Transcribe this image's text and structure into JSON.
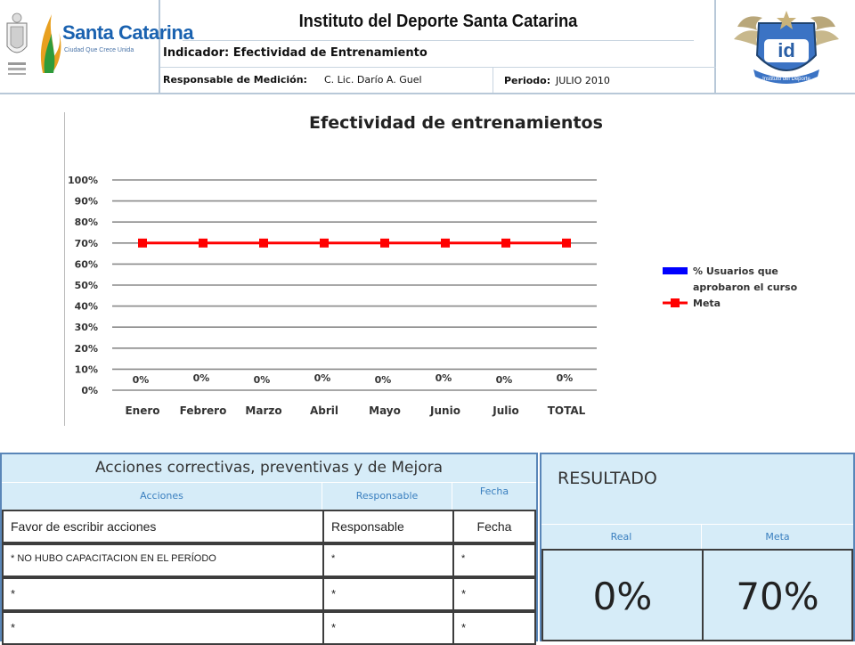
{
  "header": {
    "brand_title": "Santa Catarina",
    "brand_subtitle": "Ciudad Que Crece Unida",
    "institute_title": "Instituto del Deporte Santa Catarina",
    "indicator": "Indicador: Efectividad de Entrenamiento",
    "responsible_label": "Responsable de Medición:",
    "responsible_value": "C. Lic. Darío A. Guel",
    "period_label": "Periodo:",
    "period_value": "JULIO 2010",
    "right_logo_text": "id",
    "right_logo_caption": "Instituto del Deporte",
    "brand_color": "#1a62b0"
  },
  "chart_data": {
    "type": "line",
    "title": "Efectividad de entrenamientos",
    "categories": [
      "Enero",
      "Febrero",
      "Marzo",
      "Abril",
      "Mayo",
      "Junio",
      "Julio",
      "TOTAL"
    ],
    "y_ticks": [
      "0%",
      "10%",
      "20%",
      "30%",
      "40%",
      "50%",
      "60%",
      "70%",
      "80%",
      "90%",
      "100%"
    ],
    "ylim": [
      0,
      100
    ],
    "grid": true,
    "legend_position": "right",
    "series": [
      {
        "name": "% Usuarios que aprobaron el curso",
        "kind": "bar",
        "color": "#0000ff",
        "values": [
          0,
          0,
          0,
          0,
          0,
          0,
          0,
          0
        ],
        "labels": [
          "0%",
          "0%",
          "0%",
          "0%",
          "0%",
          "0%",
          "0%",
          "0%"
        ]
      },
      {
        "name": "Meta",
        "kind": "line",
        "color": "#ff0000",
        "values": [
          70,
          70,
          70,
          70,
          70,
          70,
          70,
          70
        ]
      }
    ],
    "legend_lines": {
      "bar_line1": "% Usuarios que",
      "bar_line2": "aprobaron el curso",
      "meta": "Meta"
    }
  },
  "actions": {
    "title": "Acciones correctivas, preventivas y de Mejora",
    "col_actions": "Acciones",
    "col_responsible": "Responsable",
    "col_date": "Fecha",
    "rows": [
      {
        "action": "Favor de escribir acciones",
        "responsible": "Responsable",
        "date": "Fecha"
      },
      {
        "action": "* NO HUBO CAPACITACION EN EL PERÍODO",
        "responsible": "*",
        "date": "*"
      },
      {
        "action": "*",
        "responsible": "*",
        "date": "*"
      },
      {
        "action": "*",
        "responsible": "*",
        "date": "*"
      }
    ]
  },
  "result": {
    "title": "RESULTADO",
    "col_real": "Real",
    "col_meta": "Meta",
    "real_value": "0%",
    "meta_value": "70%"
  }
}
